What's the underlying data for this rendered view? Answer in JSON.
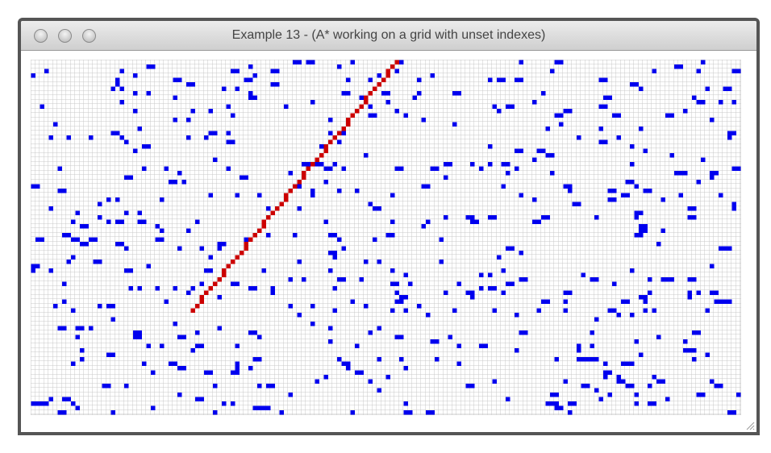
{
  "window": {
    "title": "Example 13 - (A* working on a grid with unset indexes)"
  }
}
